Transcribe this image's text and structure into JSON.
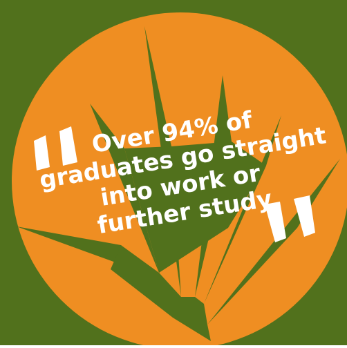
{
  "colors": {
    "background": "#51711C",
    "circle": "#EF8E22",
    "leaves": "#51711C",
    "text": "#FFFFFF"
  },
  "badge": {
    "open_quote_icon": "open-quote-icon",
    "close_quote_icon": "close-quote-icon",
    "leaf_icon": "agave-leaves-icon",
    "lines": [
      "Over 94% of",
      "graduates go straight",
      "into work or",
      "further study"
    ]
  }
}
